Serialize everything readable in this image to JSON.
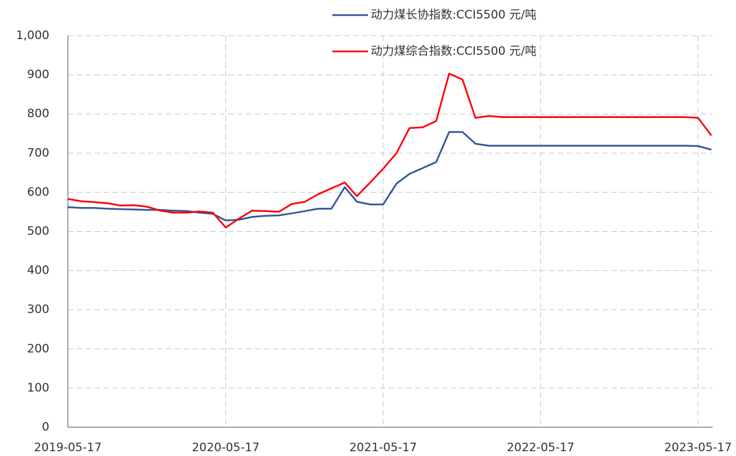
{
  "chart_data": {
    "type": "line",
    "x": [
      "2019-05-17",
      "2019-06-17",
      "2019-07-17",
      "2019-08-17",
      "2019-09-17",
      "2019-10-17",
      "2019-11-17",
      "2019-12-17",
      "2020-01-17",
      "2020-02-17",
      "2020-03-17",
      "2020-04-17",
      "2020-05-17",
      "2020-06-17",
      "2020-07-17",
      "2020-08-17",
      "2020-09-17",
      "2020-10-17",
      "2020-11-17",
      "2020-12-17",
      "2021-01-17",
      "2021-02-17",
      "2021-03-17",
      "2021-04-17",
      "2021-05-17",
      "2021-06-17",
      "2021-07-17",
      "2021-08-17",
      "2021-09-17",
      "2021-10-17",
      "2021-11-17",
      "2021-12-17",
      "2022-01-17",
      "2022-02-17",
      "2022-03-17",
      "2022-04-17",
      "2022-05-17",
      "2022-06-17",
      "2022-07-17",
      "2022-08-17",
      "2022-09-17",
      "2022-10-17",
      "2022-11-17",
      "2022-12-17",
      "2023-01-17",
      "2023-02-17",
      "2023-03-17",
      "2023-04-17",
      "2023-05-17",
      "2023-06-17"
    ],
    "series": [
      {
        "name": "动力煤长协指数:CCI5500 元/吨",
        "color": "#2f5597",
        "values": [
          562,
          560,
          560,
          558,
          557,
          556,
          555,
          555,
          553,
          552,
          548,
          545,
          528,
          530,
          537,
          540,
          541,
          546,
          552,
          558,
          558,
          613,
          576,
          569,
          569,
          622,
          647,
          662,
          677,
          754,
          754,
          724,
          719,
          719,
          719,
          719,
          719,
          719,
          719,
          719,
          719,
          719,
          719,
          719,
          719,
          719,
          719,
          719,
          718,
          709
        ]
      },
      {
        "name": "动力煤综合指数:CCI5500 元/吨",
        "color": "#ff0000",
        "values": [
          583,
          577,
          575,
          572,
          566,
          567,
          563,
          553,
          548,
          548,
          551,
          548,
          510,
          533,
          553,
          552,
          550,
          570,
          576,
          595,
          610,
          625,
          590,
          625,
          660,
          700,
          764,
          766,
          782,
          903,
          888,
          790,
          795,
          792,
          792,
          792,
          792,
          792,
          792,
          792,
          792,
          792,
          792,
          792,
          792,
          792,
          792,
          792,
          790,
          745
        ]
      }
    ],
    "xlim": [
      "2019-05-17",
      "2023-06-20"
    ],
    "xticks": [
      "2019-05-17",
      "2020-05-17",
      "2021-05-17",
      "2022-05-17",
      "2023-05-17"
    ],
    "ylim": [
      0,
      1000
    ],
    "yticks": [
      0,
      100,
      200,
      300,
      400,
      500,
      600,
      700,
      800,
      900,
      {
        "value": 1000,
        "label": "1,000"
      }
    ],
    "grid": true,
    "legend": "top-center"
  }
}
